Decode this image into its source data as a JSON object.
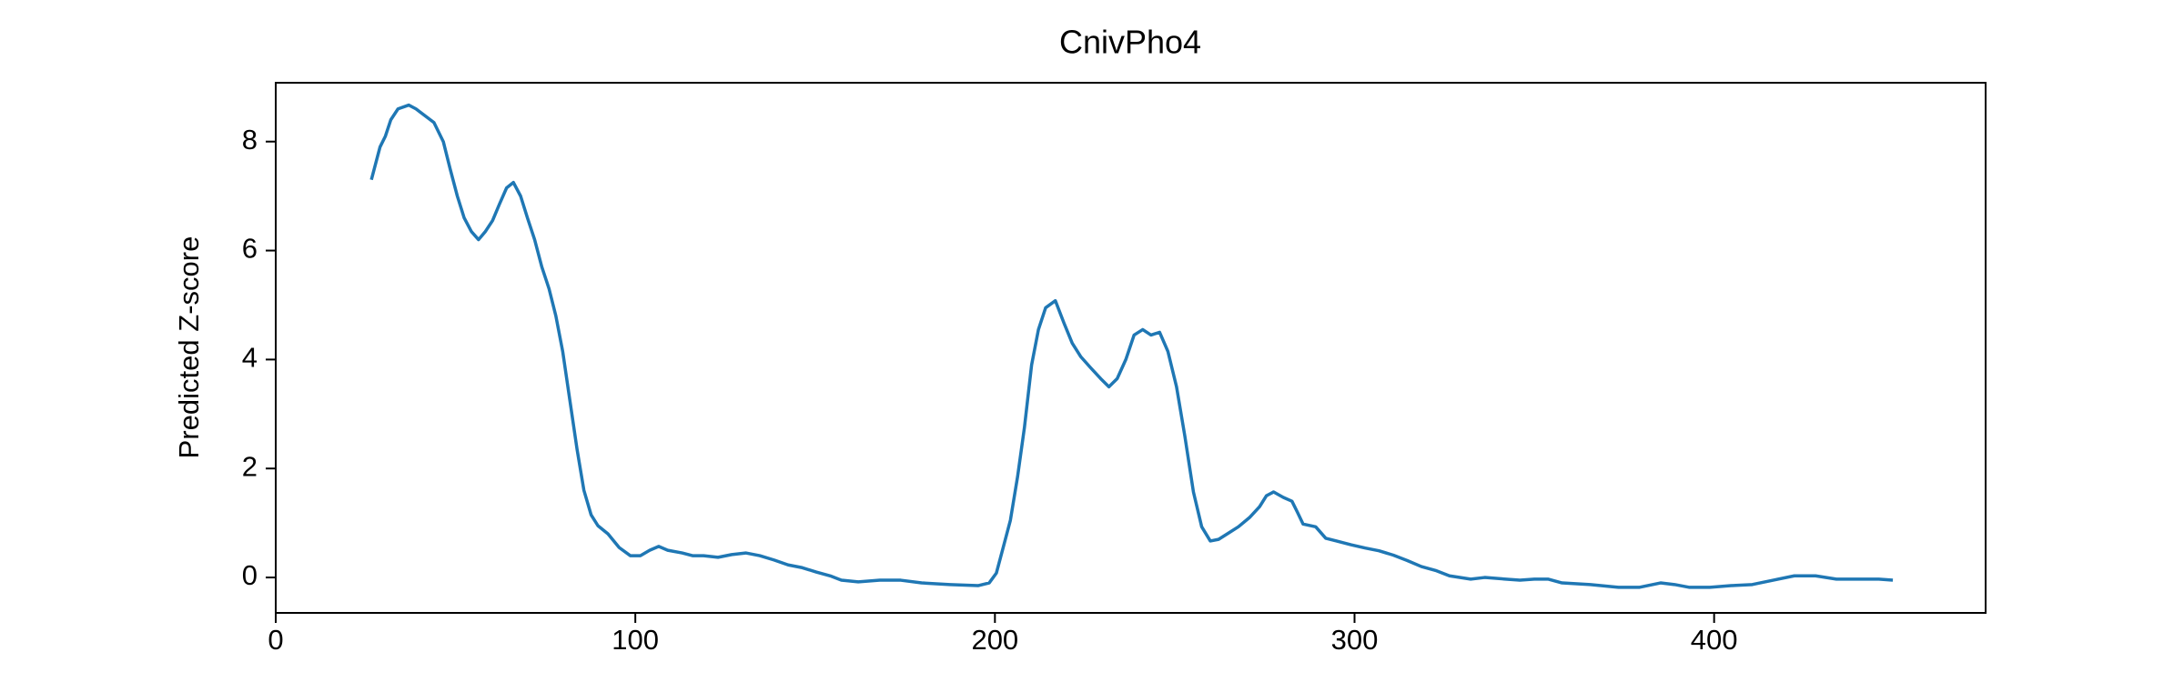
{
  "chart_data": {
    "type": "line",
    "title": "CnivPho4",
    "y_label": "Predicted Z-score",
    "color": "#1f77b4",
    "x": [
      26.6,
      29,
      30.5,
      32,
      34,
      37,
      39,
      42,
      44,
      46.6,
      48.5,
      50.5,
      52.4,
      54.4,
      56.4,
      58.3,
      60.3,
      62.2,
      64.2,
      66.1,
      68.1,
      70,
      72,
      74,
      76,
      77.9,
      79.8,
      81.8,
      83.8,
      85.7,
      87.7,
      89.6,
      92.4,
      95.5,
      98.6,
      101.4,
      104,
      106.5,
      109,
      113,
      115.9,
      119,
      123,
      126.8,
      130.7,
      134.6,
      138.6,
      142.5,
      146.4,
      150.3,
      154.2,
      157.3,
      162,
      168,
      173.8,
      179.6,
      187.5,
      195.3,
      198.4,
      200.4,
      202.3,
      204.3,
      206.3,
      208.2,
      210.2,
      212.1,
      214.1,
      216.8,
      219.2,
      221.5,
      223.9,
      226.6,
      229.4,
      231.7,
      234,
      236.4,
      238.7,
      241.1,
      243.4,
      245.8,
      248.1,
      250.5,
      252.8,
      255.2,
      257.5,
      259.9,
      262.2,
      264.6,
      267.7,
      270.8,
      273.6,
      275.5,
      277.5,
      280.2,
      282.6,
      284.1,
      285.7,
      289.2,
      292,
      295,
      299,
      303,
      306.8,
      310.8,
      314.7,
      318.6,
      322.5,
      326.4,
      332.3,
      336.2,
      342,
      346,
      350,
      353.8,
      357.7,
      365.6,
      373.4,
      379.3,
      385.1,
      389,
      393,
      398.8,
      404.7,
      410.6,
      416.4,
      422.3,
      428.2,
      434,
      440,
      445.8,
      449.7
    ],
    "values": [
      7.3,
      7.9,
      8.1,
      8.4,
      8.6,
      8.67,
      8.6,
      8.45,
      8.35,
      8.0,
      7.5,
      7.0,
      6.6,
      6.35,
      6.2,
      6.35,
      6.55,
      6.85,
      7.15,
      7.25,
      7.0,
      6.6,
      6.2,
      5.7,
      5.3,
      4.8,
      4.15,
      3.25,
      2.35,
      1.6,
      1.15,
      0.95,
      0.8,
      0.55,
      0.4,
      0.4,
      0.5,
      0.57,
      0.5,
      0.45,
      0.4,
      0.4,
      0.37,
      0.42,
      0.45,
      0.4,
      0.32,
      0.23,
      0.18,
      0.1,
      0.03,
      -0.05,
      -0.08,
      -0.05,
      -0.05,
      -0.1,
      -0.13,
      -0.15,
      -0.1,
      0.08,
      0.55,
      1.05,
      1.85,
      2.75,
      3.9,
      4.55,
      4.95,
      5.08,
      4.67,
      4.3,
      4.05,
      3.85,
      3.65,
      3.5,
      3.65,
      4.0,
      4.45,
      4.55,
      4.45,
      4.5,
      4.15,
      3.5,
      2.6,
      1.57,
      0.93,
      0.67,
      0.7,
      0.8,
      0.93,
      1.1,
      1.3,
      1.5,
      1.57,
      1.47,
      1.4,
      1.2,
      0.98,
      0.93,
      0.72,
      0.67,
      0.6,
      0.54,
      0.49,
      0.41,
      0.31,
      0.2,
      0.13,
      0.03,
      -0.03,
      0,
      -0.03,
      -0.05,
      -0.03,
      -0.03,
      -0.1,
      -0.13,
      -0.18,
      -0.18,
      -0.1,
      -0.13,
      -0.18,
      -0.18,
      -0.15,
      -0.13,
      -0.05,
      0.03,
      0.03,
      -0.03,
      -0.03,
      -0.03,
      -0.05
    ],
    "xlim": [
      0,
      475.5
    ],
    "ylim": [
      -0.65,
      9.08
    ],
    "xticks": [
      0,
      100,
      200,
      300,
      400
    ],
    "yticks": [
      0,
      2,
      4,
      6,
      8
    ]
  }
}
